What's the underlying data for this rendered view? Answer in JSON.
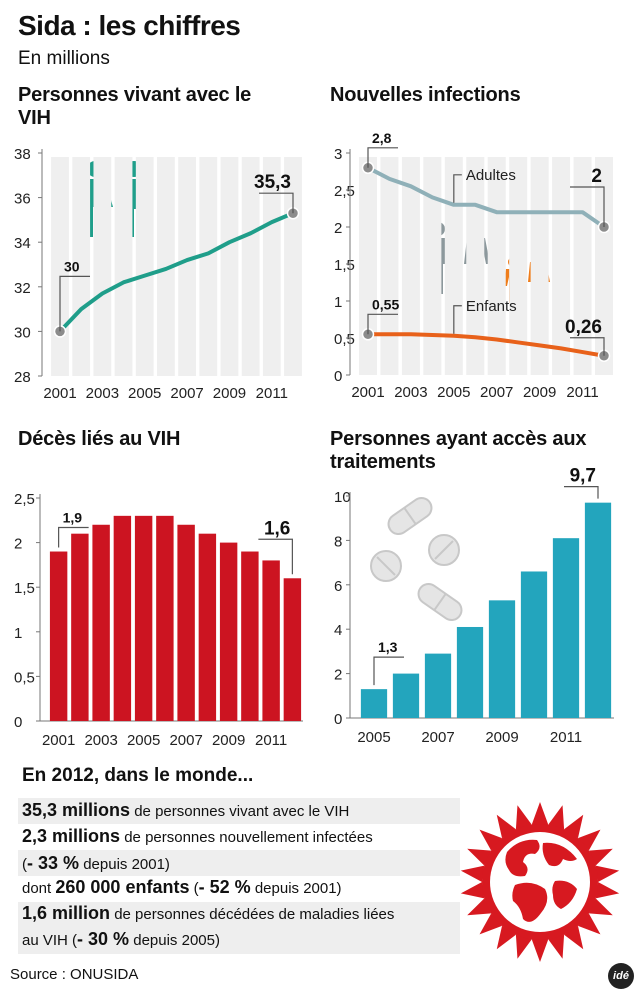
{
  "header": {
    "title": "Sida : les chiffres",
    "subtitle": "En millions"
  },
  "chart_data": [
    {
      "type": "line",
      "title": "Personnes vivant avec le VIH",
      "x": [
        2001,
        2002,
        2003,
        2004,
        2005,
        2006,
        2007,
        2008,
        2009,
        2010,
        2011,
        2012
      ],
      "series": [
        {
          "values": [
            30,
            31,
            31.7,
            32.2,
            32.5,
            32.8,
            33.2,
            33.5,
            34.0,
            34.4,
            34.9,
            35.3
          ]
        }
      ],
      "xticks": [
        "2001",
        "2003",
        "2005",
        "2007",
        "2009",
        "2011"
      ],
      "yticks": [
        "28",
        "30",
        "32",
        "34",
        "36",
        "38"
      ],
      "ylim": [
        28,
        38
      ],
      "annotations": [
        {
          "label": "30",
          "x": 2001,
          "y": 30
        },
        {
          "label": "35,3",
          "x": 2012,
          "y": 35.3
        }
      ],
      "colors": {
        "line": "#1f9e8a",
        "bars": "#efefef",
        "marker": "#8c8c8c"
      }
    },
    {
      "type": "line",
      "title": "Nouvelles infections",
      "x": [
        2001,
        2002,
        2003,
        2004,
        2005,
        2006,
        2007,
        2008,
        2009,
        2010,
        2011,
        2012
      ],
      "series": [
        {
          "name": "Adultes",
          "values": [
            2.8,
            2.65,
            2.55,
            2.4,
            2.3,
            2.3,
            2.2,
            2.2,
            2.2,
            2.2,
            2.2,
            2.0
          ],
          "color": "#8fb0b8"
        },
        {
          "name": "Enfants",
          "values": [
            0.55,
            0.55,
            0.55,
            0.54,
            0.53,
            0.51,
            0.48,
            0.44,
            0.4,
            0.36,
            0.31,
            0.26
          ],
          "color": "#e8611a"
        }
      ],
      "xticks": [
        "2001",
        "2003",
        "2005",
        "2007",
        "2009",
        "2011"
      ],
      "yticks": [
        "0",
        "0,5",
        "1",
        "1,5",
        "2",
        "2,5",
        "3"
      ],
      "ylim": [
        0,
        3
      ],
      "annotations": [
        {
          "label": "2,8",
          "x": 2001,
          "y": 2.8
        },
        {
          "label": "2",
          "x": 2012,
          "y": 2.0
        },
        {
          "label": "0,55",
          "x": 2001,
          "y": 0.55
        },
        {
          "label": "0,26",
          "x": 2012,
          "y": 0.26
        }
      ]
    },
    {
      "type": "bar",
      "title": "Décès liés au VIH",
      "categories": [
        "2001",
        "2002",
        "2003",
        "2004",
        "2005",
        "2006",
        "2007",
        "2008",
        "2009",
        "2010",
        "2011",
        "2012"
      ],
      "values": [
        1.9,
        2.1,
        2.2,
        2.3,
        2.3,
        2.3,
        2.2,
        2.1,
        2.0,
        1.9,
        1.8,
        1.6
      ],
      "xticks": [
        "2001",
        "2003",
        "2005",
        "2007",
        "2009",
        "2011"
      ],
      "yticks": [
        "0",
        "0,5",
        "1",
        "1,5",
        "2",
        "2,5"
      ],
      "ylim": [
        0,
        2.5
      ],
      "annotations": [
        {
          "label": "1,9",
          "x": "2001",
          "y": 1.9
        },
        {
          "label": "1,6",
          "x": "2012",
          "y": 1.6
        }
      ],
      "color": "#cc1421"
    },
    {
      "type": "bar",
      "title": "Personnes ayant accès aux traitements",
      "categories": [
        "2005",
        "2006",
        "2007",
        "2008",
        "2009",
        "2010",
        "2011",
        "2012"
      ],
      "values": [
        1.3,
        2.0,
        2.9,
        4.1,
        5.3,
        6.6,
        8.1,
        9.7
      ],
      "xticks": [
        "2005",
        "2007",
        "2009",
        "2011"
      ],
      "yticks": [
        "0",
        "2",
        "4",
        "6",
        "8",
        "10"
      ],
      "ylim": [
        0,
        10
      ],
      "annotations": [
        {
          "label": "1,3",
          "x": "2005",
          "y": 1.3
        },
        {
          "label": "9,7",
          "x": "2012",
          "y": 9.7
        }
      ],
      "color": "#23a5bd"
    }
  ],
  "summary": {
    "title": "En 2012, dans le monde...",
    "line1_bold": "35,3 millions",
    "line1_rest": " de personnes vivant avec le VIH",
    "line2_bold": "2,3 millions",
    "line2_rest": " de personnes nouvellement infectées",
    "line3_open": "(",
    "line3_bold": "- 33 %",
    "line3_rest": " depuis 2001)",
    "line4_pre": "dont ",
    "line4_bold": "260 000 enfants",
    "line4_mid": " (",
    "line4_bold2": "- 52 %",
    "line4_rest": " depuis 2001)",
    "line5_bold": "1,6 million",
    "line5_rest": " de personnes décédées de maladies liées",
    "line6_pre": "au VIH (",
    "line6_bold": "- 30 %",
    "line6_rest": " depuis 2005)"
  },
  "footer": {
    "source": "Source : ONUSIDA",
    "logo": "idé"
  },
  "icons": [
    "people-icon",
    "family-icon",
    "pills-icon",
    "globe-icon"
  ]
}
